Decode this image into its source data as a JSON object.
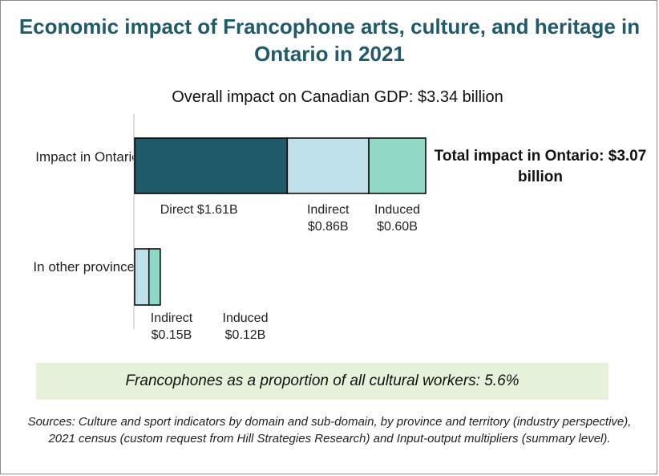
{
  "title": "Economic impact of Francophone arts, culture, and heritage in Ontario in 2021",
  "subtitle": "Overall impact on Canadian GDP: $3.34 billion",
  "total_ontario": "Total impact in Ontario: $3.07 billion",
  "stat": "Francophones as a proportion of all cultural workers: 5.6%",
  "sources": "Sources: Culture and sport indicators by domain and sub-domain, by province and territory (industry perspective), 2021 census (custom request from Hill Strategies Research) and Input-output multipliers (summary level).",
  "colors": {
    "direct": "#1f5b6b",
    "indirect": "#bfe2ea",
    "induced": "#8fd8c6",
    "outline": "#000000",
    "title": "#1f5b6b",
    "stat_bg": "#e6f1dc"
  },
  "chart_data": {
    "type": "bar",
    "orientation": "horizontal",
    "stacked": true,
    "categories": [
      "Impact in Ontario",
      "In other provinces"
    ],
    "series": [
      {
        "name": "Direct",
        "values": [
          1.61,
          0
        ]
      },
      {
        "name": "Indirect",
        "values": [
          0.86,
          0.15
        ]
      },
      {
        "name": "Induced",
        "values": [
          0.6,
          0.12
        ]
      }
    ],
    "segment_labels": [
      [
        "Direct $1.61B",
        "Indirect\n$0.86B",
        "Induced\n$0.60B"
      ],
      [
        "",
        "Indirect\n$0.15B",
        "Induced\n$0.12B"
      ]
    ],
    "unit": "$ billions",
    "grid": false,
    "legend": "none"
  }
}
